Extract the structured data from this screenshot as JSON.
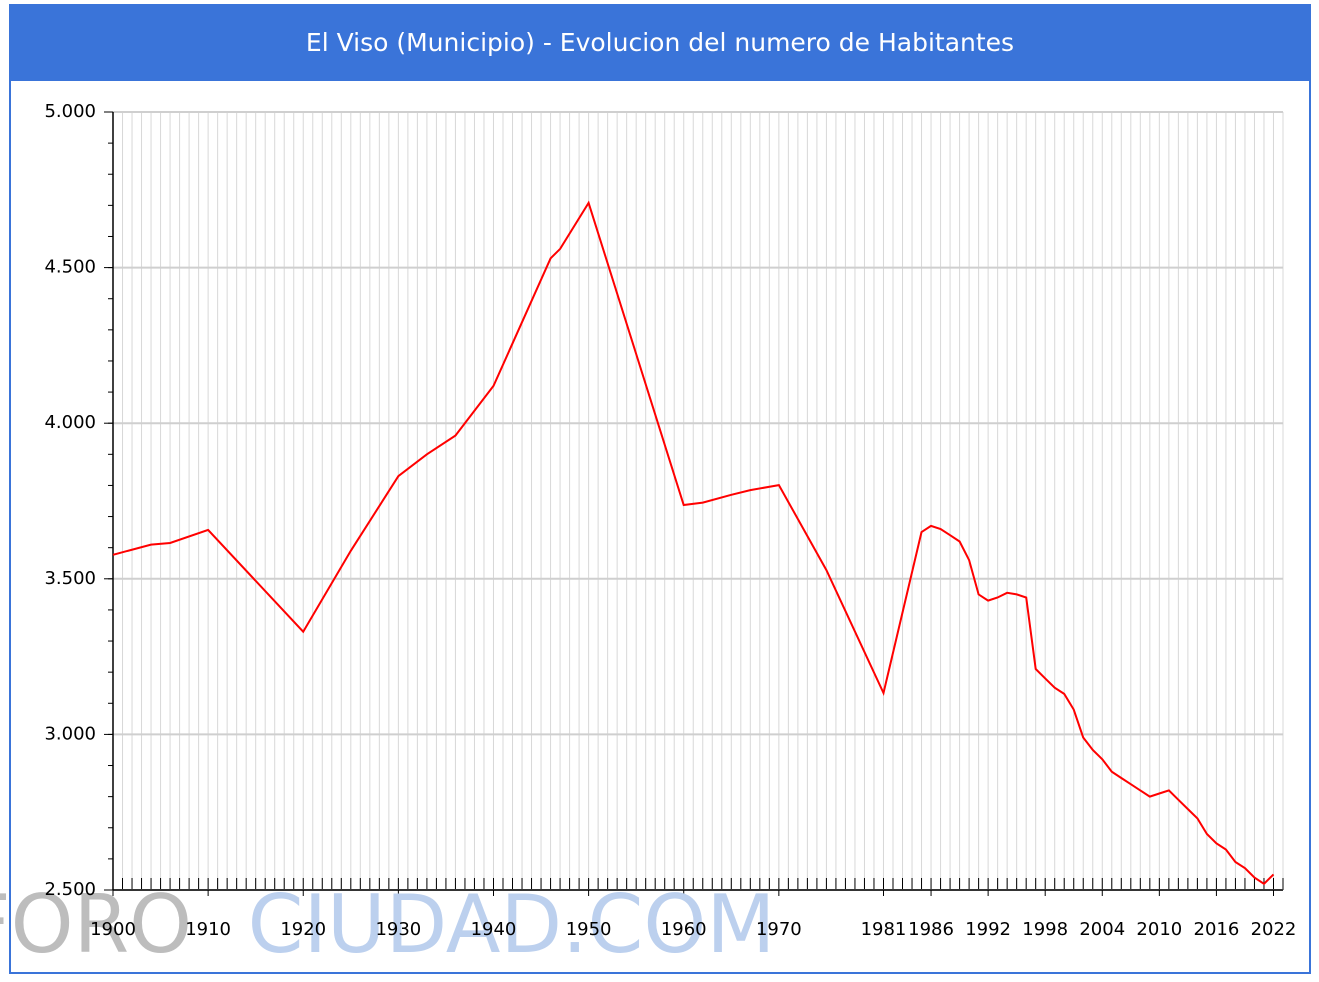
{
  "chart_data": {
    "type": "line",
    "title": "El Viso (Municipio) - Evolucion del numero de Habitantes",
    "watermark": [
      "FORO",
      "CIUDAD.COM"
    ],
    "x": [
      1900,
      1904,
      1906,
      1910,
      1920,
      1925,
      1930,
      1933,
      1936,
      1940,
      1946,
      1947,
      1950,
      1960,
      1962,
      1965,
      1967,
      1970,
      1975,
      1981,
      1985,
      1986,
      1987,
      1988,
      1989,
      1990,
      1991,
      1992,
      1993,
      1994,
      1995,
      1996,
      1997,
      1998,
      1999,
      2000,
      2001,
      2002,
      2003,
      2004,
      2005,
      2006,
      2007,
      2008,
      2009,
      2010,
      2011,
      2012,
      2013,
      2014,
      2015,
      2016,
      2017,
      2018,
      2019,
      2020,
      2021,
      2022
    ],
    "values": [
      3577,
      3610,
      3615,
      3657,
      3330,
      3590,
      3830,
      3900,
      3960,
      4120,
      4530,
      4560,
      4708,
      3737,
      3745,
      3770,
      3785,
      3801,
      3528,
      3133,
      3650,
      3670,
      3660,
      3640,
      3620,
      3560,
      3450,
      3430,
      3440,
      3455,
      3450,
      3440,
      3210,
      3180,
      3150,
      3130,
      3080,
      2990,
      2950,
      2920,
      2880,
      2860,
      2840,
      2820,
      2800,
      2810,
      2820,
      2790,
      2760,
      2730,
      2680,
      2650,
      2630,
      2590,
      2570,
      2540,
      2520,
      2550
    ],
    "color": "#ff0000",
    "xlim": [
      1900,
      2023
    ],
    "xticks": [
      1900,
      1910,
      1920,
      1930,
      1940,
      1950,
      1960,
      1970,
      1981,
      1986,
      1992,
      1998,
      2004,
      2010,
      2016,
      2022
    ],
    "ylim": [
      2500,
      5000
    ],
    "yticks": [
      {
        "value": 2500,
        "label": "2.500"
      },
      {
        "value": 3000,
        "label": "3.000"
      },
      {
        "value": 3500,
        "label": "3.500"
      },
      {
        "value": 4000,
        "label": "4.000"
      },
      {
        "value": 4500,
        "label": "4.500"
      },
      {
        "value": 5000,
        "label": "5.000"
      }
    ],
    "x_minor_interval": 1,
    "y_minor_interval": 100,
    "grid": true
  }
}
